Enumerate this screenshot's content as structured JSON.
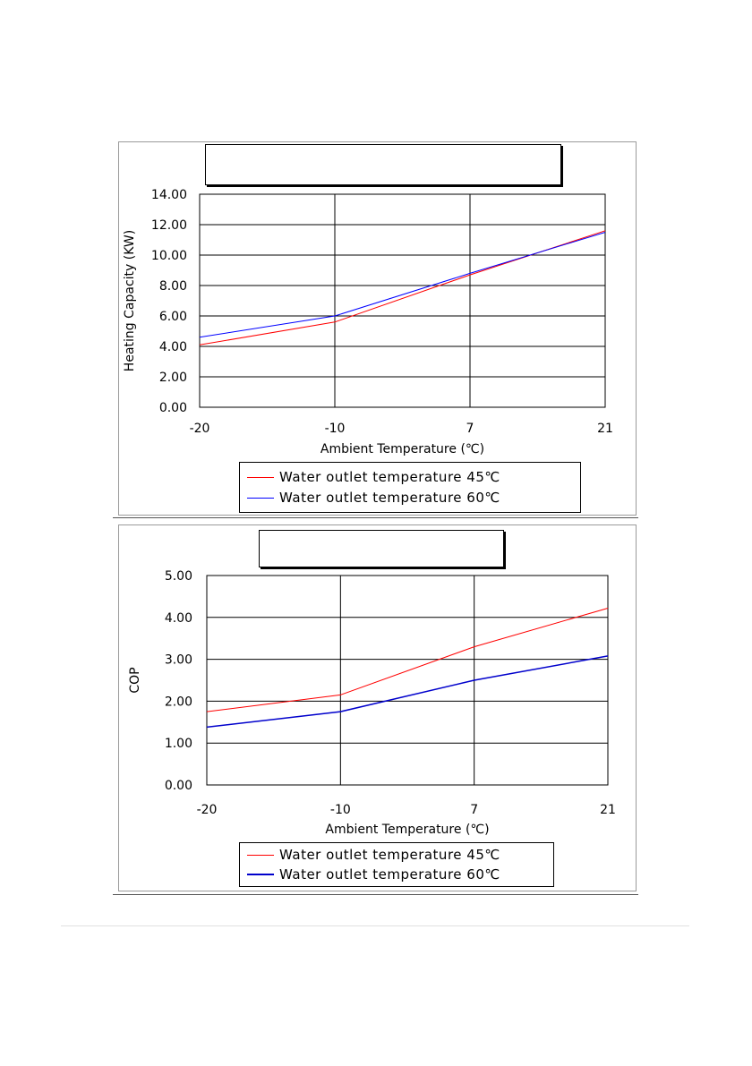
{
  "chart_data": [
    {
      "type": "line",
      "title": "",
      "xlabel": "Ambient Temperature (℃)",
      "ylabel": "Heating Capacity (KW)",
      "categories": [
        "-20",
        "-10",
        "7",
        "21"
      ],
      "ylim": [
        0,
        14
      ],
      "yticks": [
        "0.00",
        "2.00",
        "4.00",
        "6.00",
        "8.00",
        "10.00",
        "12.00",
        "14.00"
      ],
      "grid": true,
      "legend_position": "bottom",
      "series": [
        {
          "name": "Water outlet temperature 45℃",
          "color": "#ff0000",
          "values": [
            4.1,
            5.6,
            8.7,
            11.6
          ]
        },
        {
          "name": "Water outlet temperature 60℃",
          "color": "#0000ff",
          "values": [
            4.6,
            6.0,
            8.8,
            11.5
          ]
        }
      ]
    },
    {
      "type": "line",
      "title": "",
      "xlabel": "Ambient Temperature (℃)",
      "ylabel": "COP",
      "categories": [
        "-20",
        "-10",
        "7",
        "21"
      ],
      "ylim": [
        0,
        5
      ],
      "yticks": [
        "0.00",
        "1.00",
        "2.00",
        "3.00",
        "4.00",
        "5.00"
      ],
      "grid": true,
      "legend_position": "bottom",
      "series": [
        {
          "name": "Water outlet temperature 45℃",
          "color": "#ff0000",
          "values": [
            1.75,
            2.15,
            3.3,
            4.22
          ]
        },
        {
          "name": "Water outlet temperature 60℃",
          "color": "#0000cc",
          "values": [
            1.38,
            1.75,
            2.5,
            3.08
          ]
        }
      ]
    }
  ]
}
